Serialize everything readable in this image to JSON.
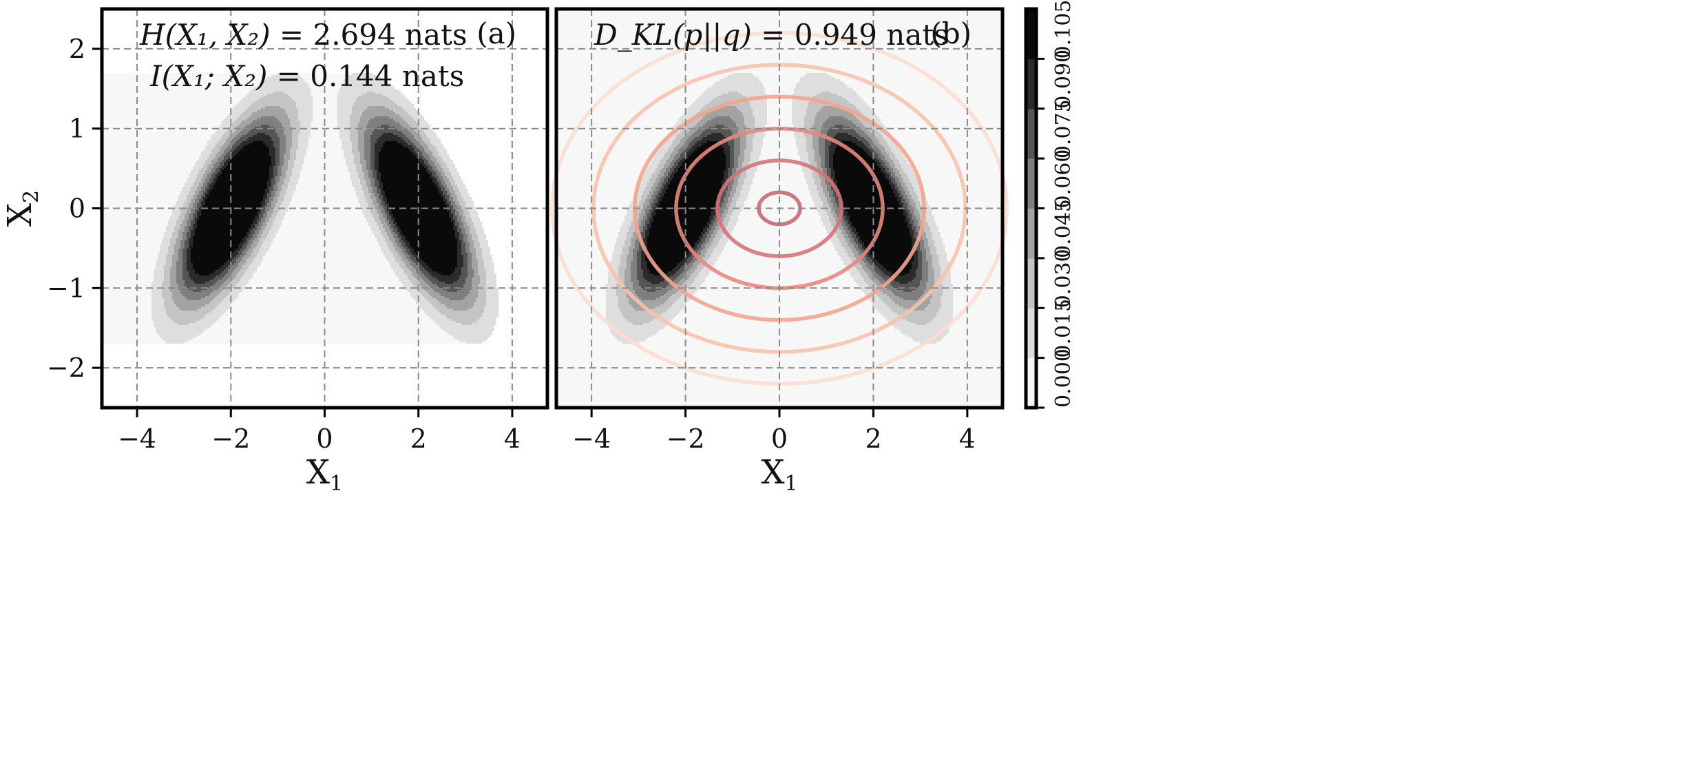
{
  "chart_data": [
    {
      "type": "contour",
      "panel_tag": "(a)",
      "xlim": [
        -4.75,
        4.75
      ],
      "ylim": [
        -2.5,
        2.5
      ],
      "xticks": [
        -4,
        -2,
        0,
        2,
        4
      ],
      "yticks": [
        -2,
        -1,
        0,
        1,
        2
      ],
      "xtick_labels": [
        "−4",
        "−2",
        "0",
        "2",
        "4"
      ],
      "ytick_labels": [
        "−2",
        "−1",
        "0",
        "1",
        "2"
      ],
      "xlabel_base": "X",
      "xlabel_sub": "1",
      "ylabel_base": "X",
      "ylabel_sub": "2",
      "grid": true,
      "annotations": [
        {
          "name": "entropy",
          "lhs": "H(X₁, X₂)",
          "eq": "= 2.694 nats"
        },
        {
          "name": "mutual-information",
          "lhs": "I(X₁; X₂)",
          "eq": "= 0.144 nats"
        }
      ],
      "components": [
        {
          "mean": [
            -2,
            0
          ],
          "sx": 0.75,
          "sy": 0.75,
          "rho": 0.7
        },
        {
          "mean": [
            2,
            0
          ],
          "sx": 0.75,
          "sy": 0.75,
          "rho": -0.7
        }
      ],
      "mixture_weights": [
        0.5,
        0.5
      ],
      "contour_levels": [
        0.0,
        0.015,
        0.03,
        0.045,
        0.06,
        0.075,
        0.09,
        0.105
      ]
    },
    {
      "type": "contour",
      "panel_tag": "(b)",
      "xlim": [
        -4.75,
        4.75
      ],
      "ylim": [
        -2.5,
        2.5
      ],
      "xticks": [
        -4,
        -2,
        0,
        2,
        4
      ],
      "yticks": [],
      "xtick_labels": [
        "−4",
        "−2",
        "0",
        "2",
        "4"
      ],
      "xlabel_base": "X",
      "xlabel_sub": "1",
      "grid": true,
      "annotations": [
        {
          "name": "kl-divergence",
          "lhs": "D_KL(p||q)",
          "eq": "= 0.949 nats"
        }
      ],
      "overlay": {
        "description": "gaussian q contour lines",
        "mean": [
          0,
          0
        ],
        "sx": 2.2,
        "sy": 1.0,
        "line_levels_mahalanobis": [
          0.2,
          0.6,
          1.0,
          1.4,
          1.8,
          2.2
        ],
        "line_colors": [
          "#c46a73",
          "#d6737a",
          "#e8867f",
          "#f2a48e",
          "#f7c2ad",
          "#fbddd0"
        ]
      }
    }
  ],
  "colorbar": {
    "levels": [
      0.0,
      0.015,
      0.03,
      0.045,
      0.06,
      0.075,
      0.09,
      0.105
    ],
    "tick_labels": [
      "0.000",
      "0.015",
      "0.030",
      "0.045",
      "0.060",
      "0.075",
      "0.090",
      "0.105"
    ],
    "band_colors": [
      "#f7f7f7",
      "#dedede",
      "#c4c4c4",
      "#a3a3a3",
      "#7f7f7f",
      "#555555",
      "#2b2b2b",
      "#0a0a0a"
    ]
  }
}
